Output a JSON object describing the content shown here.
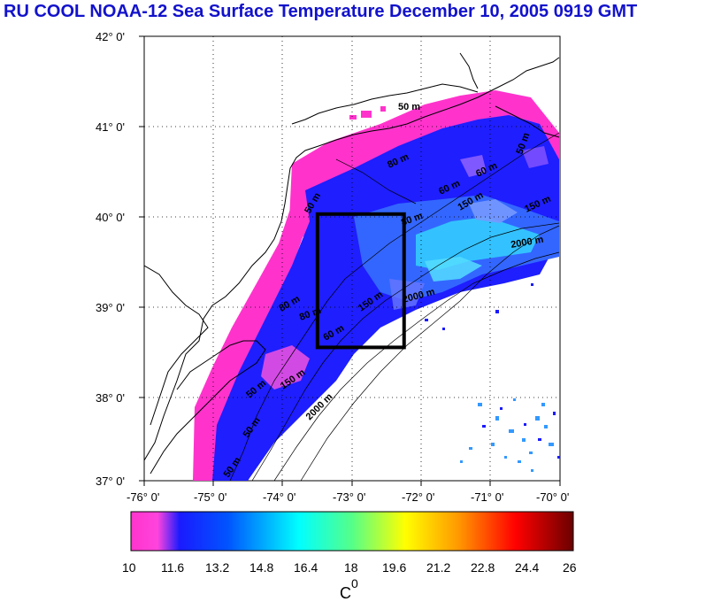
{
  "title": "RU COOL  NOAA-12 Sea Surface Temperature December 10, 2005 0919 GMT",
  "map": {
    "lat_labels": [
      "42° 0'",
      "41° 0'",
      "40° 0'",
      "39° 0'",
      "38° 0'",
      "37° 0'"
    ],
    "lon_labels": [
      "-76° 0'",
      "-75° 0'",
      "-74° 0'",
      "-73° 0'",
      "-72° 0'",
      "-71° 0'",
      "-70° 0'"
    ],
    "lat_range": [
      37,
      42
    ],
    "lon_range": [
      -76,
      -70
    ],
    "study_box": {
      "lon_min": -73.5,
      "lon_max": -72.25,
      "lat_min": 38.5,
      "lat_max": 40.0
    },
    "isobath_labels": [
      "50 m",
      "50 m",
      "80 m",
      "60 m",
      "60 m",
      "150 m",
      "2000 m",
      "50 m",
      "150 m",
      "2000 m",
      "80 m",
      "80 m",
      "60 m",
      "150 m",
      "80 m",
      "50 m",
      "150 m",
      "2000 m",
      "50 m",
      "50 m"
    ]
  },
  "colorbar": {
    "ticks": [
      "10",
      "11.6",
      "13.2",
      "14.8",
      "16.4",
      "18",
      "19.6",
      "21.2",
      "22.8",
      "24.4",
      "26"
    ],
    "unit_label": "C",
    "unit_superscript": "0",
    "colors": [
      "#ff33cc",
      "#1a1aff",
      "#00ffff",
      "#ffff00",
      "#ff0000",
      "#6b0000"
    ]
  }
}
